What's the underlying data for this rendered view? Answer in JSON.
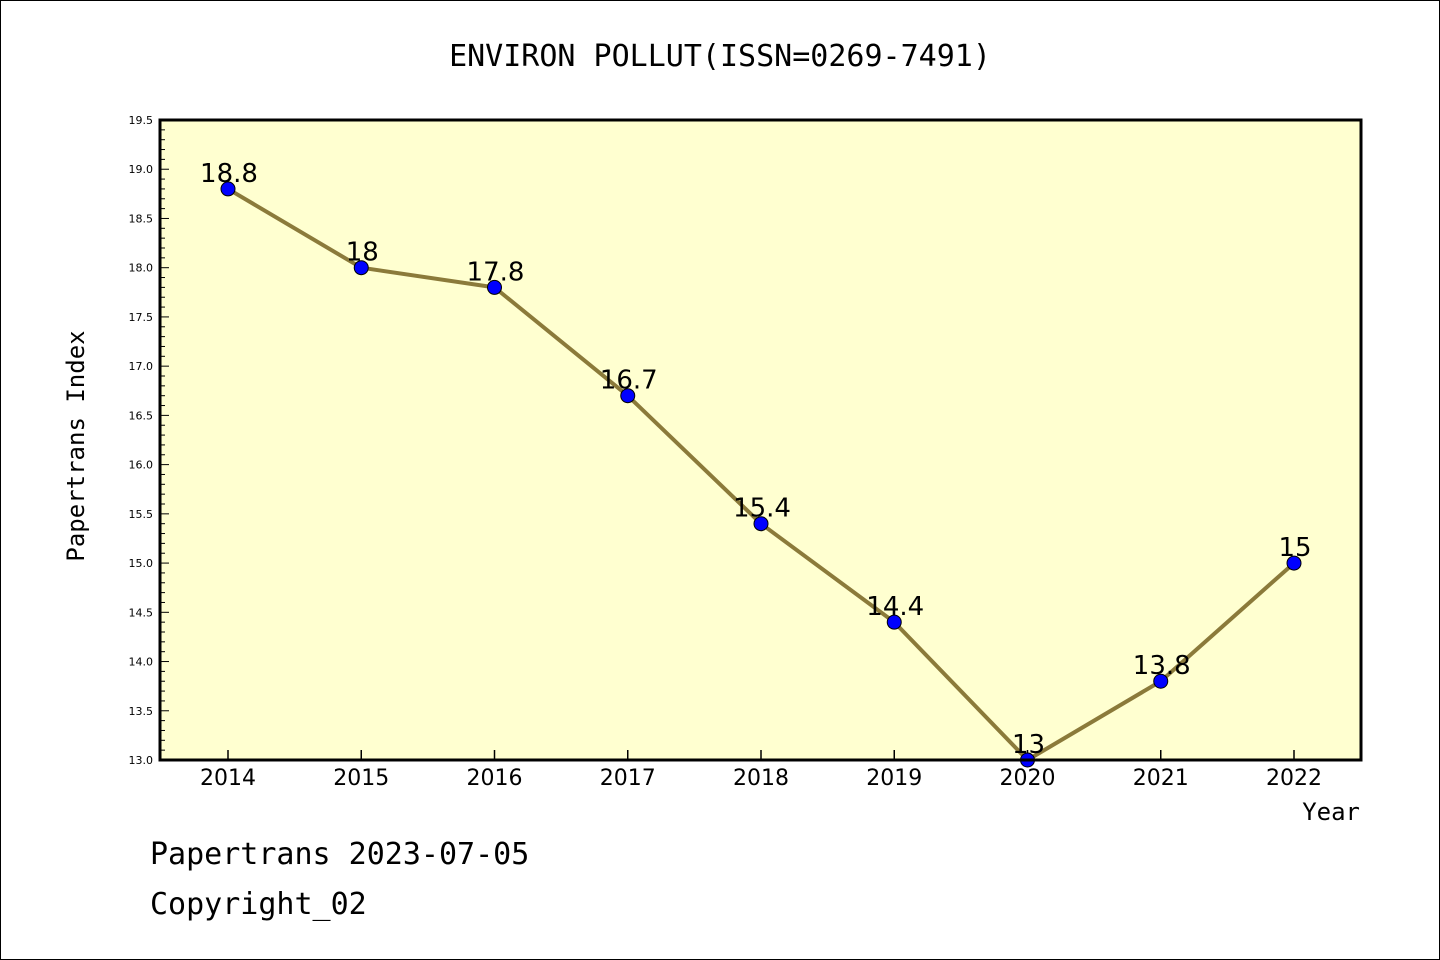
{
  "chart_data": {
    "type": "line",
    "title": "ENVIRON POLLUT(ISSN=0269-7491)",
    "xlabel": "Year",
    "ylabel": "Papertrans Index",
    "categories": [
      "2014",
      "2015",
      "2016",
      "2017",
      "2018",
      "2019",
      "2020",
      "2021",
      "2022"
    ],
    "values": [
      18.8,
      18,
      17.8,
      16.7,
      15.4,
      14.4,
      13,
      13.8,
      15
    ],
    "data_labels": [
      "18.8",
      "18",
      "17.8",
      "16.7",
      "15.4",
      "14.4",
      "13",
      "13.8",
      "15"
    ],
    "ylim": [
      13.0,
      19.5
    ],
    "yticks": [
      "13.0",
      "13.5",
      "14.0",
      "14.5",
      "15.0",
      "15.5",
      "16.0",
      "16.5",
      "17.0",
      "17.5",
      "18.0",
      "18.5",
      "19.0",
      "19.5"
    ],
    "grid": false,
    "colors": {
      "plot_background": "#ffffd0",
      "line": "#8b7a3a",
      "marker": "#0000ff"
    }
  },
  "footer": {
    "date_line": "Papertrans 2023-07-05",
    "copyright": "Copyright_02"
  }
}
